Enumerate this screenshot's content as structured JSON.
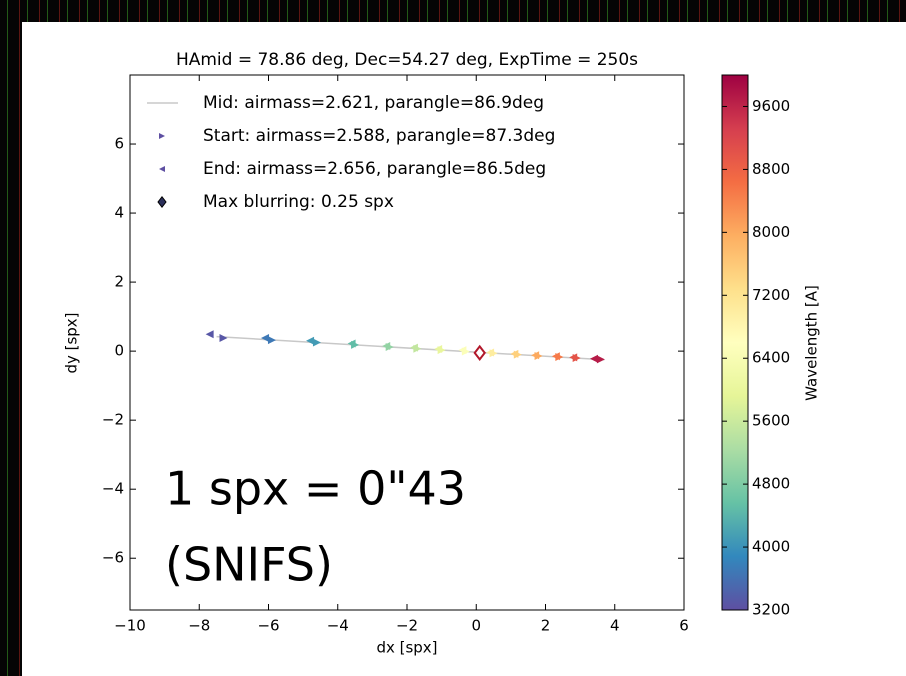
{
  "chart_data": {
    "type": "scatter",
    "title": "HAmid = 78.86 deg, Dec=54.27 deg, ExpTime = 250s",
    "x_label": "dx [spx]",
    "y_label": "dy [spx]",
    "xlim": [
      -10,
      6
    ],
    "ylim": [
      -7.5,
      8
    ],
    "xticks": [
      {
        "value": -10,
        "label": "−10"
      },
      {
        "value": -8,
        "label": "−8"
      },
      {
        "value": -6,
        "label": "−6"
      },
      {
        "value": -4,
        "label": "−4"
      },
      {
        "value": -2,
        "label": "−2"
      },
      0,
      2,
      4,
      6
    ],
    "yticks": [
      {
        "value": -6,
        "label": "−6"
      },
      {
        "value": -4,
        "label": "−4"
      },
      {
        "value": -2,
        "label": "−2"
      },
      0,
      2,
      4,
      6
    ],
    "wavelengths": [
      3300,
      3700,
      4100,
      4500,
      5000,
      5500,
      6000,
      6500,
      7000,
      7500,
      8000,
      8500,
      9000,
      9700
    ],
    "series": [
      {
        "name": "Mid: airmass=2.621, parangle=86.9deg",
        "marker": "line",
        "color": "#c8c8c8",
        "x": [
          -7.5,
          3.7
        ],
        "y": [
          0.42,
          -0.25
        ]
      },
      {
        "name": "Start: airmass=2.588, parangle=87.3deg",
        "marker": "triangle-right",
        "color": "#5e4fa2",
        "x": [
          -7.3,
          -5.9,
          -4.6,
          -3.5,
          -2.5,
          -1.7,
          -1.0,
          -0.3,
          0.5,
          1.2,
          1.8,
          2.4,
          2.9,
          3.6
        ],
        "y": [
          0.38,
          0.32,
          0.25,
          0.18,
          0.12,
          0.07,
          0.03,
          -0.01,
          -0.06,
          -0.1,
          -0.14,
          -0.17,
          -0.2,
          -0.24
        ]
      },
      {
        "name": "End: airmass=2.656, parangle=86.5deg",
        "marker": "triangle-left",
        "color": "#5e4fa2",
        "x": [
          -7.7,
          -6.1,
          -4.8,
          -3.6,
          -2.6,
          -1.8,
          -1.1,
          -0.4,
          0.4,
          1.1,
          1.7,
          2.3,
          2.8,
          3.4
        ],
        "y": [
          0.49,
          0.38,
          0.3,
          0.22,
          0.15,
          0.1,
          0.06,
          0.03,
          -0.04,
          -0.08,
          -0.12,
          -0.15,
          -0.18,
          -0.22
        ]
      },
      {
        "name": "Max blurring: 0.25 spx",
        "marker": "diamond",
        "color": "#2b2f5a",
        "edge_color": "#b2182b",
        "x": [
          0.1
        ],
        "y": [
          -0.05
        ]
      }
    ],
    "colorbar": {
      "label": "Wavelength [A]",
      "lim": [
        3200,
        10000
      ],
      "ticks": [
        3200,
        4000,
        4800,
        5600,
        6400,
        7200,
        8000,
        8800,
        9600
      ],
      "colormap": [
        "#5e4fa2",
        "#3288bd",
        "#66c2a5",
        "#abdda4",
        "#e6f598",
        "#ffffbf",
        "#fee08b",
        "#fdae61",
        "#f46d43",
        "#d53e4f",
        "#9e0142"
      ]
    },
    "annotations": [
      "1 spx = 0\"43",
      "(SNIFS)"
    ]
  }
}
